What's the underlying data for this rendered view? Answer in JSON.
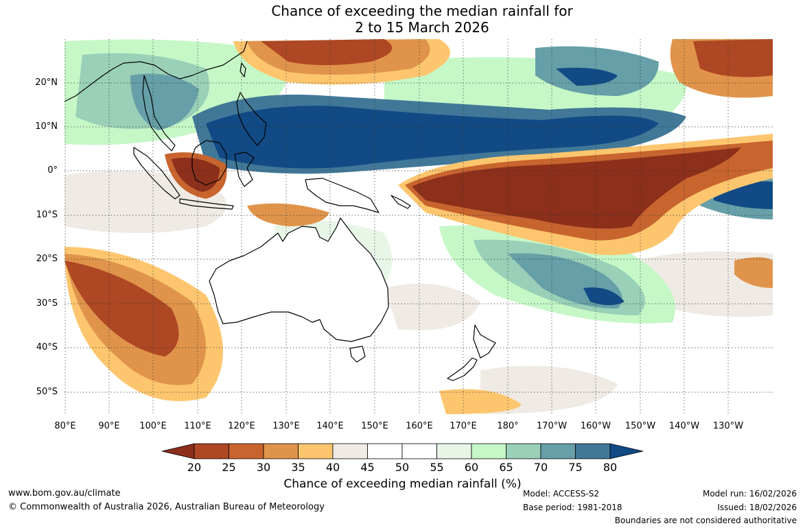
{
  "title": {
    "line1": "Chance of exceeding the median rainfall for",
    "line2": "2 to 15 March 2026"
  },
  "lat_labels": [
    "20°N",
    "10°N",
    "0°",
    "10°S",
    "20°S",
    "30°S",
    "40°S",
    "50°S"
  ],
  "lon_labels": [
    "80°E",
    "90°E",
    "100°E",
    "110°E",
    "120°E",
    "130°E",
    "140°E",
    "150°E",
    "160°E",
    "170°E",
    "180°",
    "170°W",
    "160°W",
    "150°W",
    "140°W",
    "130°W"
  ],
  "colorbar": {
    "label": "Chance of exceeding median rainfall (%)",
    "ticks": [
      "20",
      "25",
      "30",
      "35",
      "40",
      "45",
      "50",
      "55",
      "60",
      "65",
      "70",
      "75",
      "80"
    ],
    "colors": [
      "#8c2f1b",
      "#ae4724",
      "#c8642e",
      "#e0944b",
      "#fdc66e",
      "#efebe4",
      "#ffffff",
      "#ffffff",
      "#e8f6e8",
      "#c6f8c7",
      "#9ad0b7",
      "#669fa7",
      "#417898",
      "#114a85"
    ]
  },
  "footer": {
    "url": "www.bom.gov.au/climate",
    "copyright": "© Commonwealth of Australia 2026, Australian Bureau of Meteorology",
    "model": "Model: ACCESS-S2",
    "base_period": "Base period: 1981-2018",
    "model_run": "Model run: 16/02/2026",
    "issued": "Issued: 18/02/2026",
    "disclaimer": "Boundaries are not considered authoritative"
  }
}
